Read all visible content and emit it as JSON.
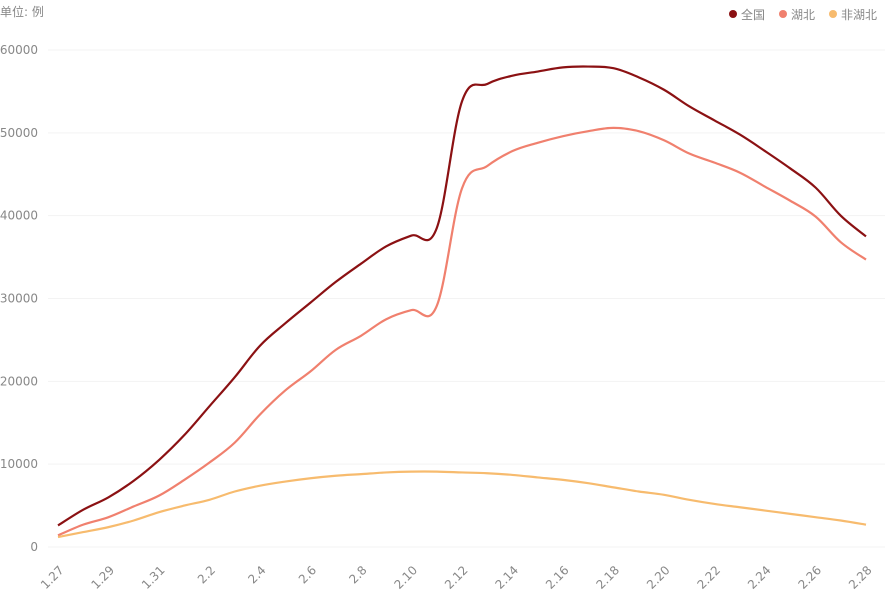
{
  "chart_data": {
    "type": "line",
    "unit_label": "单位: 例",
    "categories": [
      "1.27",
      null,
      "1.29",
      null,
      "1.31",
      null,
      "2.2",
      null,
      "2.4",
      null,
      "2.6",
      null,
      "2.8",
      null,
      "2.10",
      null,
      "2.12",
      null,
      "2.14",
      null,
      "2.16",
      null,
      "2.18",
      null,
      "2.20",
      null,
      "2.22",
      null,
      "2.24",
      null,
      "2.26",
      null,
      "2.28"
    ],
    "series": [
      {
        "name": "全国",
        "color": "#8b1113",
        "values": [
          2600,
          4500,
          6000,
          8000,
          10500,
          13500,
          17000,
          20500,
          24300,
          27000,
          29500,
          32000,
          34200,
          36300,
          37600,
          38500,
          53800,
          55900,
          56900,
          57400,
          57900,
          58000,
          57800,
          56700,
          55200,
          53200,
          51500,
          49800,
          47800,
          45700,
          43400,
          40000,
          37500
        ]
      },
      {
        "name": "湖北",
        "color": "#f0806e",
        "values": [
          1400,
          2700,
          3600,
          4900,
          6200,
          8100,
          10200,
          12600,
          16000,
          18900,
          21200,
          23800,
          25500,
          27500,
          28600,
          29100,
          43300,
          46000,
          47800,
          48800,
          49600,
          50200,
          50600,
          50200,
          49100,
          47500,
          46400,
          45200,
          43500,
          41800,
          39900,
          36800,
          34700
        ]
      },
      {
        "name": "非湖北",
        "color": "#f7bb6e",
        "values": [
          1200,
          1800,
          2400,
          3200,
          4200,
          5000,
          5700,
          6700,
          7400,
          7900,
          8300,
          8600,
          8800,
          9000,
          9100,
          9100,
          9000,
          8900,
          8700,
          8400,
          8100,
          7700,
          7200,
          6700,
          6300,
          5700,
          5200,
          4800,
          4400,
          4000,
          3600,
          3200,
          2700
        ]
      }
    ],
    "ylim": [
      0,
      60000
    ],
    "yticks": [
      0,
      10000,
      20000,
      30000,
      40000,
      50000,
      60000
    ],
    "grid": true,
    "legend": "top-right"
  }
}
